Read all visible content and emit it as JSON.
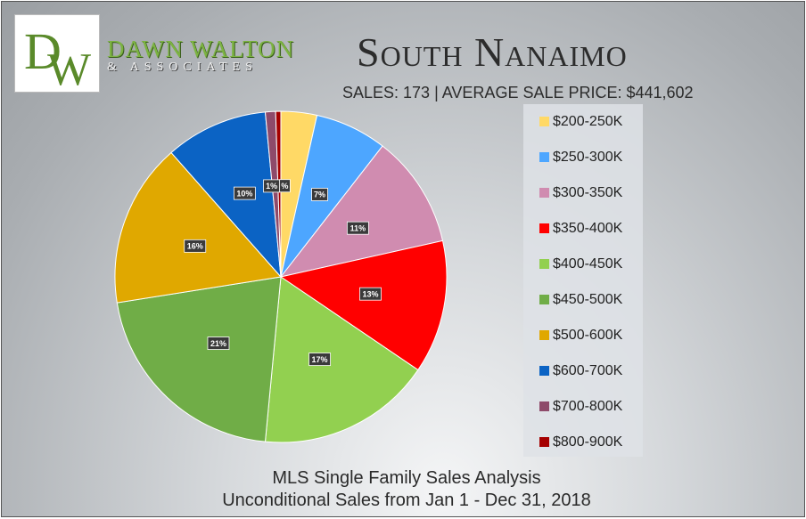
{
  "logo": {
    "monogram_d": "D",
    "monogram_w": "W",
    "name": "DAWN WALTON",
    "subtitle": "& ASSOCIATES"
  },
  "header": {
    "title": "South Nanaimo",
    "stats": "SALES: 173   |   AVERAGE SALE PRICE: $441,602"
  },
  "footer": {
    "line1": "MLS Single Family Sales Analysis",
    "line2": "Unconditional Sales from Jan 1 - Dec 31, 2018"
  },
  "chart_data": {
    "type": "pie",
    "title": "South Nanaimo",
    "categories": [
      "$200-250K",
      "$250-300K",
      "$300-350K",
      "$350-400K",
      "$400-450K",
      "$450-500K",
      "$500-600K",
      "$600-700K",
      "$700-800K",
      "$800-900K"
    ],
    "values": [
      3.5,
      7,
      11,
      13,
      17,
      21,
      16,
      10,
      1,
      0.5
    ],
    "labels": [
      "",
      "7%",
      "11%",
      "13%",
      "17%",
      "21%",
      "16%",
      "10%",
      "1%",
      "%"
    ],
    "colors": [
      "#ffd966",
      "#4da6ff",
      "#d08cb0",
      "#ff0000",
      "#92d050",
      "#70ad47",
      "#e0a800",
      "#0b63c4",
      "#8e4a6a",
      "#a50000"
    ],
    "legend_position": "right"
  }
}
